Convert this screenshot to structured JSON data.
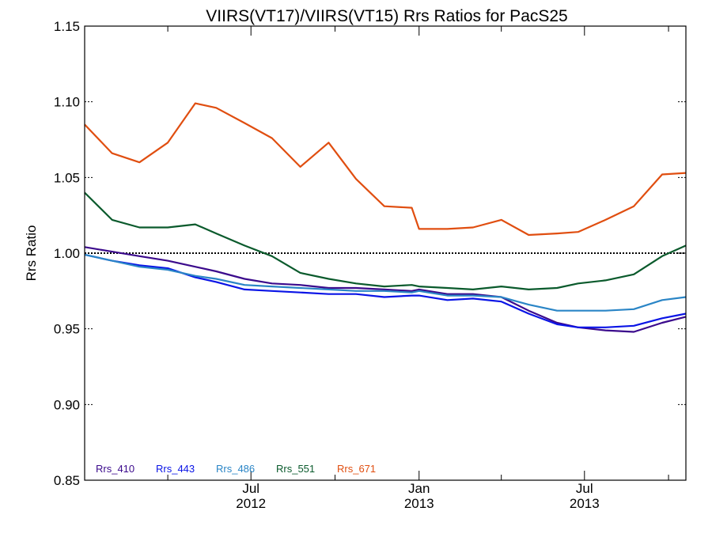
{
  "chart_data": {
    "type": "line",
    "title": "VIIRS(VT17)/VIIRS(VT15)  Rrs Ratios for PacS25",
    "ylabel": "Rrs Ratio",
    "xlabel": "",
    "ylim": [
      0.85,
      1.15
    ],
    "xlim": [
      "2012-01-01",
      "2013-10-20"
    ],
    "yticks": [
      {
        "value": 0.85,
        "label": "0.85"
      },
      {
        "value": 0.9,
        "label": "0.90"
      },
      {
        "value": 0.95,
        "label": "0.95"
      },
      {
        "value": 1.0,
        "label": "1.00"
      },
      {
        "value": 1.05,
        "label": "1.05"
      },
      {
        "value": 1.1,
        "label": "1.10"
      },
      {
        "value": 1.15,
        "label": "1.15"
      }
    ],
    "xticks_major": [
      {
        "date": "2012-07-01",
        "label1": "Jul",
        "label2": "2012"
      },
      {
        "date": "2013-01-01",
        "label1": "Jan",
        "label2": "2013"
      },
      {
        "date": "2013-07-01",
        "label1": "Jul",
        "label2": "2013"
      }
    ],
    "xticks_minor": [
      "2012-04-01",
      "2012-10-01",
      "2013-04-01",
      "2013-10-01"
    ],
    "reference_line": 1.0,
    "legend_position": "bottom-left",
    "x": [
      "2012-01-01",
      "2012-01-31",
      "2012-03-01",
      "2012-04-01",
      "2012-05-01",
      "2012-05-24",
      "2012-06-24",
      "2012-07-24",
      "2012-08-24",
      "2012-09-24",
      "2012-10-24",
      "2012-11-24",
      "2012-12-24",
      "2013-01-01",
      "2013-02-01",
      "2013-03-01",
      "2013-04-01",
      "2013-05-01",
      "2013-06-01",
      "2013-06-24",
      "2013-07-24",
      "2013-08-24",
      "2013-09-24",
      "2013-10-20"
    ],
    "series": [
      {
        "name": "Rrs_410",
        "color": "#3b0a8c",
        "values": [
          1.004,
          1.001,
          0.998,
          0.995,
          0.991,
          0.988,
          0.983,
          0.98,
          0.979,
          0.977,
          0.977,
          0.976,
          0.975,
          0.976,
          0.973,
          0.973,
          0.971,
          0.962,
          0.954,
          0.951,
          0.949,
          0.948,
          0.954,
          0.958
        ]
      },
      {
        "name": "Rrs_443",
        "color": "#0a14e6",
        "values": [
          0.999,
          0.995,
          0.992,
          0.99,
          0.984,
          0.981,
          0.976,
          0.975,
          0.974,
          0.973,
          0.973,
          0.971,
          0.972,
          0.972,
          0.969,
          0.97,
          0.968,
          0.96,
          0.953,
          0.951,
          0.951,
          0.952,
          0.957,
          0.96
        ]
      },
      {
        "name": "Rrs_486",
        "color": "#2a85c6",
        "values": [
          0.999,
          0.995,
          0.991,
          0.989,
          0.985,
          0.983,
          0.979,
          0.978,
          0.977,
          0.976,
          0.975,
          0.975,
          0.974,
          0.975,
          0.972,
          0.972,
          0.971,
          0.966,
          0.962,
          0.962,
          0.962,
          0.963,
          0.969,
          0.971
        ]
      },
      {
        "name": "Rrs_551",
        "color": "#0a5a2c",
        "values": [
          1.04,
          1.022,
          1.017,
          1.017,
          1.019,
          1.013,
          1.005,
          0.998,
          0.987,
          0.983,
          0.98,
          0.978,
          0.979,
          0.978,
          0.977,
          0.976,
          0.978,
          0.976,
          0.977,
          0.98,
          0.982,
          0.986,
          0.998,
          1.005
        ]
      },
      {
        "name": "Rrs_671",
        "color": "#e04e10",
        "values": [
          1.085,
          1.066,
          1.06,
          1.073,
          1.099,
          1.096,
          1.086,
          1.076,
          1.057,
          1.073,
          1.049,
          1.031,
          1.03,
          1.016,
          1.016,
          1.017,
          1.022,
          1.012,
          1.013,
          1.014,
          1.022,
          1.031,
          1.052,
          1.053
        ]
      }
    ]
  }
}
